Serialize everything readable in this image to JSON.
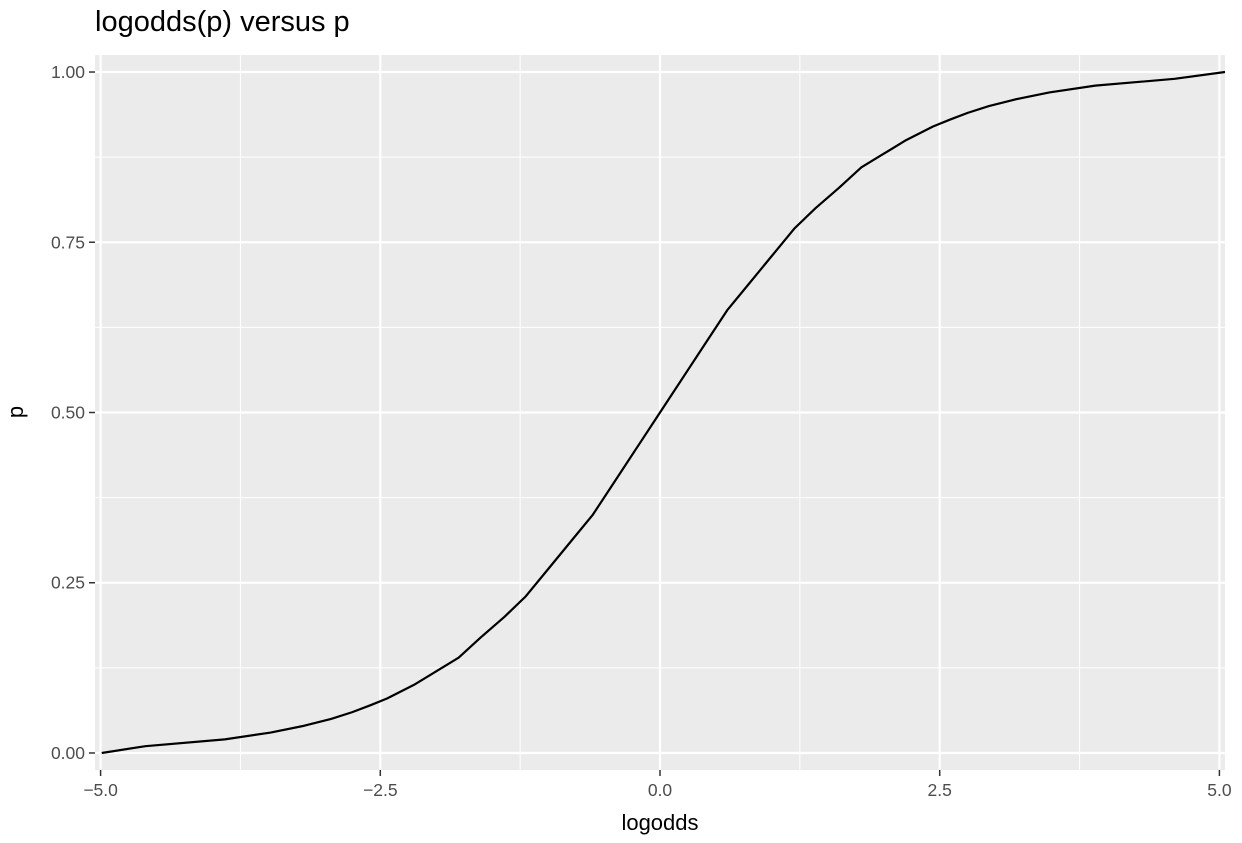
{
  "chart_data": {
    "type": "line",
    "title": "logodds(p) versus p",
    "xlabel": "logodds",
    "ylabel": "p",
    "xlim": [
      -5.05,
      5.05
    ],
    "ylim": [
      -0.025,
      1.025
    ],
    "x_ticks": [
      -5.0,
      -2.5,
      0.0,
      2.5,
      5.0
    ],
    "x_tick_labels": [
      "−5.0",
      "−2.5",
      "0.0",
      "2.5",
      "5.0"
    ],
    "y_ticks": [
      0.0,
      0.25,
      0.5,
      0.75,
      1.0
    ],
    "y_tick_labels": [
      "0.00",
      "0.25",
      "0.50",
      "0.75",
      "1.00"
    ],
    "grid": true,
    "panel_background": "#ebebeb",
    "grid_color": "#ffffff",
    "series": [
      {
        "color": "#000000",
        "x": [
          -4.99,
          -4.6,
          -3.89,
          -3.48,
          -3.18,
          -2.94,
          -2.75,
          -2.59,
          -2.44,
          -2.2,
          -2.0,
          -1.8,
          -1.6,
          -1.39,
          -1.2,
          -1.0,
          -0.8,
          -0.6,
          -0.4,
          -0.2,
          0.0,
          0.2,
          0.4,
          0.6,
          0.8,
          1.0,
          1.2,
          1.39,
          1.6,
          1.8,
          2.0,
          2.2,
          2.44,
          2.59,
          2.75,
          2.94,
          3.18,
          3.48,
          3.89,
          4.6,
          5.05
        ],
        "y": [
          0.0,
          0.01,
          0.02,
          0.03,
          0.04,
          0.05,
          0.06,
          0.07,
          0.08,
          0.1,
          0.12,
          0.14,
          0.17,
          0.2,
          0.23,
          0.27,
          0.31,
          0.35,
          0.4,
          0.45,
          0.5,
          0.55,
          0.6,
          0.65,
          0.69,
          0.73,
          0.77,
          0.8,
          0.83,
          0.86,
          0.88,
          0.9,
          0.92,
          0.93,
          0.94,
          0.95,
          0.96,
          0.97,
          0.98,
          0.99,
          1.0
        ]
      }
    ]
  }
}
